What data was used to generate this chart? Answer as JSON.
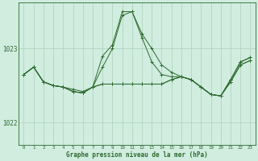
{
  "title": "Graphe pression niveau de la mer (hPa)",
  "hours": [
    0,
    1,
    2,
    3,
    4,
    5,
    6,
    7,
    8,
    9,
    10,
    11,
    12,
    13,
    14,
    15,
    16,
    17,
    18,
    19,
    20,
    21,
    22,
    23
  ],
  "series_main": [
    1022.65,
    1022.75,
    1022.55,
    1022.5,
    1022.48,
    1022.45,
    1022.42,
    1022.48,
    1022.9,
    1023.05,
    1023.5,
    1023.5,
    1023.2,
    1023.0,
    1022.78,
    1022.68,
    1022.62,
    1022.58,
    1022.48,
    1022.38,
    1022.36,
    1022.58,
    1022.82,
    1022.88
  ],
  "series_b": [
    1022.65,
    1022.75,
    1022.55,
    1022.5,
    1022.48,
    1022.42,
    1022.4,
    1022.48,
    1022.75,
    1023.0,
    1023.45,
    1023.5,
    1023.15,
    1022.82,
    1022.65,
    1022.62,
    1022.62,
    1022.58,
    1022.48,
    1022.38,
    1022.36,
    1022.58,
    1022.82,
    1022.88
  ],
  "series_flat1": [
    1022.65,
    1022.75,
    1022.55,
    1022.5,
    1022.48,
    1022.42,
    1022.4,
    1022.48,
    1022.52,
    1022.52,
    1022.52,
    1022.52,
    1022.52,
    1022.52,
    1022.52,
    1022.58,
    1022.62,
    1022.58,
    1022.48,
    1022.38,
    1022.36,
    1022.55,
    1022.78,
    1022.84
  ],
  "series_flat2": [
    1022.65,
    1022.75,
    1022.55,
    1022.5,
    1022.48,
    1022.42,
    1022.4,
    1022.48,
    1022.52,
    1022.52,
    1022.52,
    1022.52,
    1022.52,
    1022.52,
    1022.52,
    1022.58,
    1022.62,
    1022.58,
    1022.48,
    1022.38,
    1022.36,
    1022.55,
    1022.78,
    1022.84
  ],
  "line_color": "#2d6a2d",
  "bg_color": "#d0ede0",
  "grid_color": "#aed0bc",
  "ylim": [
    1021.7,
    1023.62
  ],
  "yticks": [
    1022.0,
    1023.0
  ],
  "figsize": [
    3.2,
    2.0
  ],
  "dpi": 100
}
